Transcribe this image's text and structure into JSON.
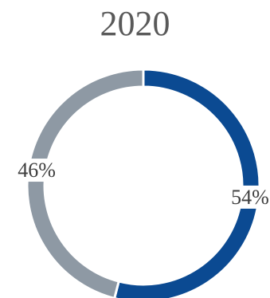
{
  "chart_data": {
    "type": "pie",
    "title": "2020",
    "categories": [
      "",
      ""
    ],
    "values": [
      54,
      46
    ],
    "labels": [
      "54%",
      "46%"
    ],
    "colors": [
      "#0b4a92",
      "#8e99a4"
    ],
    "style": "donut",
    "legend": "none",
    "grid": false
  }
}
